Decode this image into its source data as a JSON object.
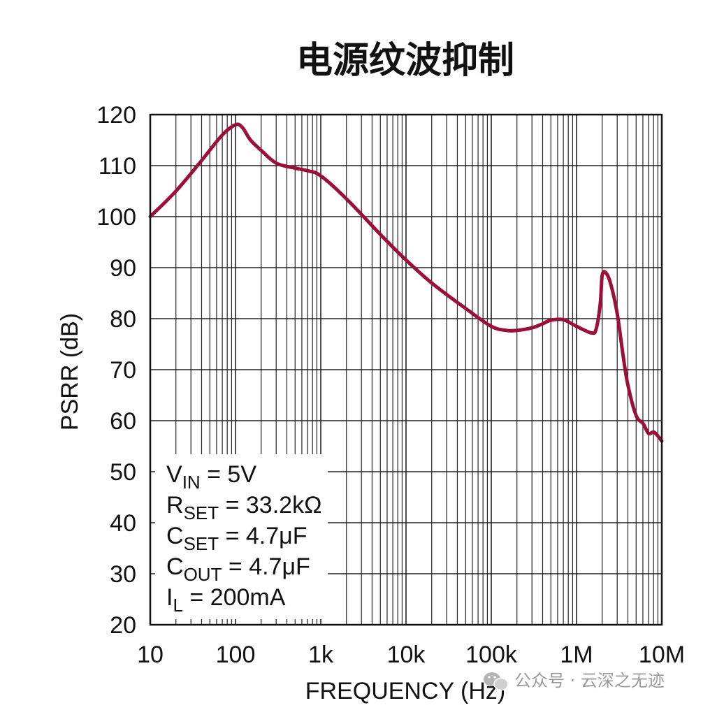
{
  "chart_data": {
    "type": "line",
    "title": "电源纹波抑制",
    "xlabel": "FREQUENCY (Hz)",
    "ylabel": "PSRR (dB)",
    "x_scale": "log",
    "xlim": [
      10,
      10000000
    ],
    "ylim": [
      20,
      120
    ],
    "x_ticks": [
      10,
      100,
      1000,
      10000,
      100000,
      1000000,
      10000000
    ],
    "x_tick_labels": [
      "10",
      "100",
      "1k",
      "10k",
      "100k",
      "1M",
      "10M"
    ],
    "y_ticks": [
      20,
      30,
      40,
      50,
      60,
      70,
      80,
      90,
      100,
      110,
      120
    ],
    "y_tick_labels": [
      "20",
      "30",
      "40",
      "50",
      "60",
      "70",
      "80",
      "90",
      "100",
      "110",
      "120"
    ],
    "grid": true,
    "line_color": "#9b1038",
    "series": [
      {
        "x": [
          10,
          20,
          40,
          70,
          100,
          120,
          150,
          200,
          300,
          500,
          700,
          1000,
          2000,
          5000,
          10000,
          20000,
          50000,
          100000,
          150000,
          200000,
          300000,
          400000,
          500000,
          700000,
          1000000,
          1500000,
          1700000,
          1900000,
          2000000,
          2200000,
          2500000,
          3000000,
          3500000,
          4000000,
          5000000,
          6000000,
          7000000,
          8000000,
          9000000,
          10000000
        ],
        "y": [
          100,
          105,
          111,
          116,
          118,
          117.5,
          115,
          113,
          110.5,
          109.5,
          109,
          108,
          103.5,
          96.5,
          91.5,
          87,
          82,
          78.5,
          77.7,
          77.7,
          78.2,
          79,
          79.7,
          79.8,
          78.5,
          77.2,
          78,
          83,
          88.5,
          89,
          87,
          81,
          73,
          67,
          61,
          59.5,
          57.5,
          57.8,
          57,
          56
        ]
      }
    ],
    "annotations": [
      {
        "main": "V",
        "sub": "IN",
        "rest": " = 5V"
      },
      {
        "main": "R",
        "sub": "SET",
        "rest": " = 33.2kΩ"
      },
      {
        "main": "C",
        "sub": "SET",
        "rest": " = 4.7μF"
      },
      {
        "main": "C",
        "sub": "OUT",
        "rest": " = 4.7μF"
      },
      {
        "main": "I",
        "sub": "L",
        "rest": " = 200mA"
      }
    ]
  },
  "watermark": {
    "icon": "wechat-icon",
    "text": "公众号 · 云深之无迹"
  }
}
